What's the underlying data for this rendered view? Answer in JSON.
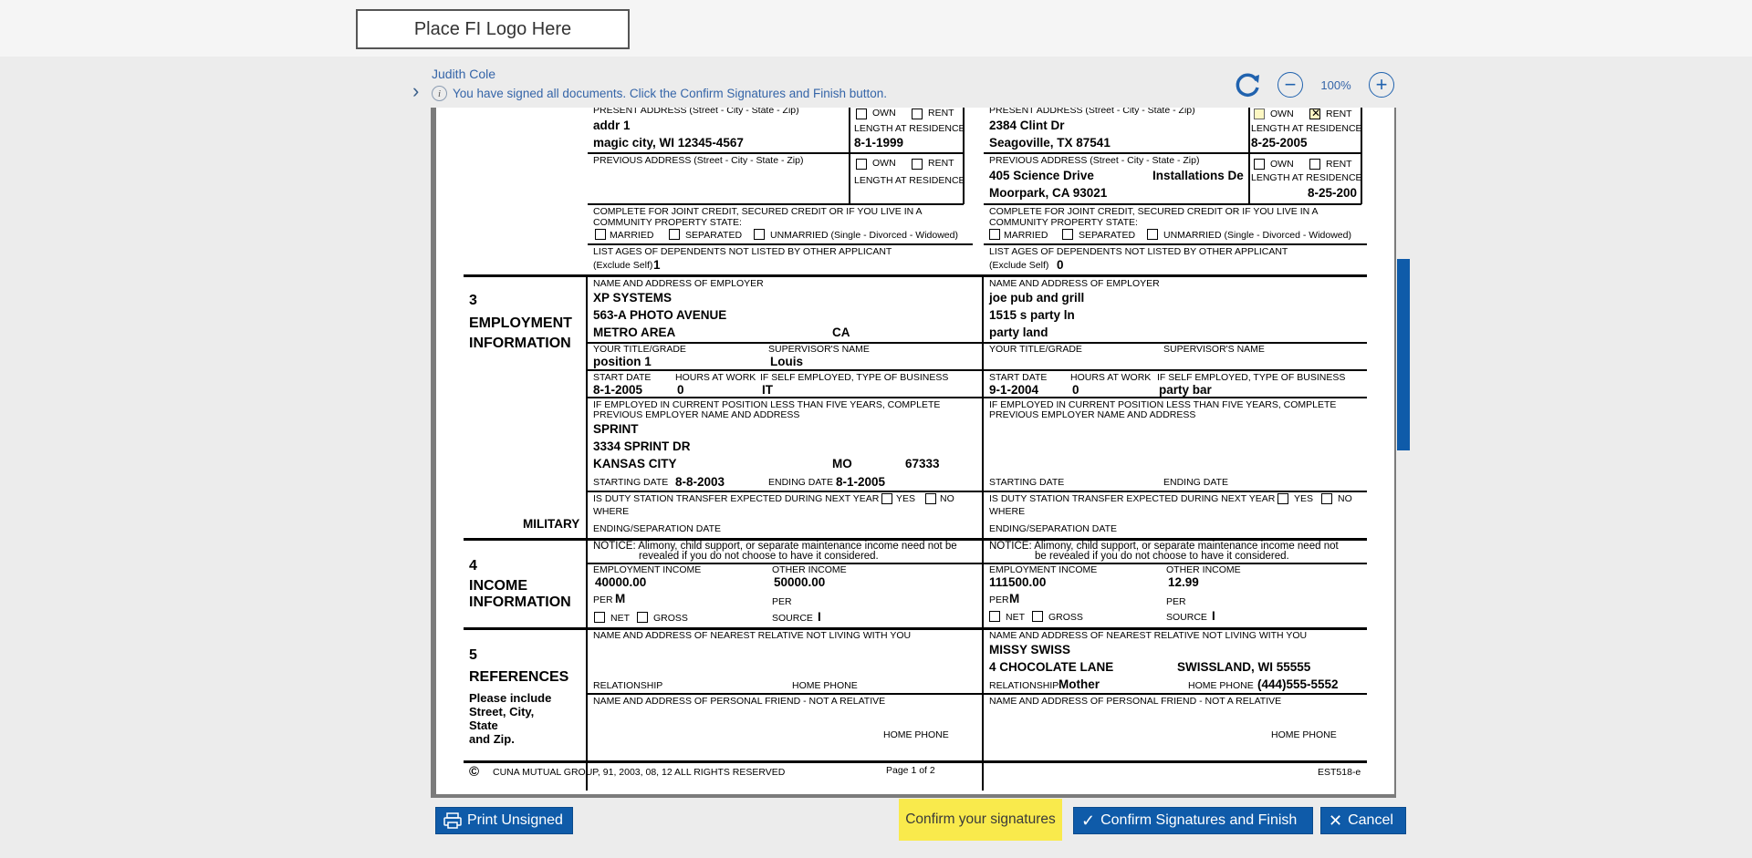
{
  "header": {
    "logo_placeholder": "Place FI Logo Here"
  },
  "signer": {
    "name": "Judith Cole",
    "info_icon": "info-icon",
    "info_text": "You have signed all documents. Click the Confirm Signatures and Finish button."
  },
  "viewer": {
    "zoom_level": "100%",
    "refresh_icon": "refresh-icon",
    "zoom_out_icon": "minus-circle-icon",
    "zoom_in_icon": "plus-circle-icon"
  },
  "form": {
    "left": {
      "present_address_label": "PRESENT ADDRESS (Street - City - State - Zip)",
      "present_address_line1": "addr 1",
      "present_address_line2": "magic city, WI 12345-4567",
      "own": "OWN",
      "rent": "RENT",
      "length_at_residence": "LENGTH AT RESIDENCE",
      "present_length": "8-1-1999",
      "previous_address_label": "PREVIOUS ADDRESS (Street - City - State - Zip)",
      "previous_length_label": "LENGTH AT RESIDENCE",
      "joint_credit_1": "COMPLETE FOR JOINT CREDIT, SECURED CREDIT OR IF YOU LIVE IN A",
      "joint_credit_2": "COMMUNITY PROPERTY STATE:",
      "married": "MARRIED",
      "separated": "SEPARATED",
      "unmarried": "UNMARRIED (Single - Divorced - Widowed)",
      "dependents_label": "LIST AGES OF DEPENDENTS NOT LISTED BY OTHER APPLICANT",
      "exclude_self": "(Exclude Self)",
      "dependents_value": "1",
      "employer_label": "NAME AND ADDRESS OF EMPLOYER",
      "employer_1": "XP SYSTEMS",
      "employer_2": "563-A PHOTO AVENUE",
      "employer_3": "METRO AREA",
      "employer_state": "CA",
      "title_label": "YOUR TITLE/GRADE",
      "supervisor_label": "SUPERVISOR'S NAME",
      "title_value": "position 1",
      "supervisor_value": "Louis",
      "start_date_label": "START DATE",
      "hours_label": "HOURS AT WORK",
      "self_employed_label": "IF SELF EMPLOYED, TYPE OF BUSINESS",
      "start_date_value": "8-1-2005",
      "hours_value": "0",
      "business_value": "IT",
      "prev_emp_label_1": "IF EMPLOYED IN CURRENT POSITION LESS THAN FIVE YEARS, COMPLETE",
      "prev_emp_label_2": "PREVIOUS EMPLOYER NAME AND ADDRESS",
      "prev_emp_1": "SPRINT",
      "prev_emp_2": "3334 SPRINT DR",
      "prev_emp_3": "KANSAS CITY",
      "prev_emp_state": "MO",
      "prev_emp_zip": "67333",
      "starting_date_label": "STARTING DATE",
      "starting_date_value": "8-8-2003",
      "ending_date_label": "ENDING DATE",
      "ending_date_value": "8-1-2005",
      "duty_label": "IS DUTY STATION TRANSFER EXPECTED DURING NEXT YEAR",
      "yes": "YES",
      "no": "NO",
      "where": "WHERE",
      "separation_label": "ENDING/SEPARATION DATE",
      "notice_1": "NOTICE: Alimony, child support, or separate maintenance income need not be",
      "notice_2": "revealed if you do not choose to have it considered.",
      "emp_income_label": "EMPLOYMENT INCOME",
      "other_income_label": "OTHER INCOME",
      "emp_income_value": "40000.00",
      "other_income_value": "50000.00",
      "per_label": "PER",
      "per_value": "M",
      "per2_label": "PER",
      "net": "NET",
      "gross": "GROSS",
      "source_label": "SOURCE",
      "source_value": "I",
      "relative_label": "NAME AND ADDRESS OF NEAREST RELATIVE NOT LIVING WITH YOU",
      "relationship_label": "RELATIONSHIP",
      "home_phone_label": "HOME PHONE",
      "friend_label": "NAME AND ADDRESS OF PERSONAL FRIEND - NOT A RELATIVE",
      "friend_phone_label": "HOME PHONE"
    },
    "right": {
      "present_address_label": "PRESENT ADDRESS (Street - City - State - Zip)",
      "present_address_line1": "2384 Clint Dr",
      "present_address_line2": "Seagoville, TX 87541",
      "own": "OWN",
      "rent": "RENT",
      "length_at_residence": "LENGTH AT RESIDENCE",
      "present_length": "8-25-2005",
      "previous_address_label": "PREVIOUS ADDRESS (Street - City - State - Zip)",
      "previous_address_line1": "405 Science Drive",
      "previous_address_extra": "Installations De",
      "previous_address_line2": "Moorpark, CA 93021",
      "previous_length_label": "LENGTH AT RESIDENCE",
      "previous_length": "8-25-200",
      "joint_credit_1": "COMPLETE FOR JOINT CREDIT, SECURED CREDIT OR IF YOU LIVE IN A",
      "joint_credit_2": "COMMUNITY PROPERTY STATE:",
      "married": "MARRIED",
      "separated": "SEPARATED",
      "unmarried": "UNMARRIED (Single - Divorced - Widowed)",
      "dependents_label": "LIST AGES OF DEPENDENTS NOT LISTED BY OTHER APPLICANT",
      "exclude_self": "(Exclude Self)",
      "dependents_value": "0",
      "employer_label": "NAME AND ADDRESS OF EMPLOYER",
      "employer_1": "joe pub and grill",
      "employer_2": "1515 s party ln",
      "employer_3": "party land",
      "title_label": "YOUR TITLE/GRADE",
      "supervisor_label": "SUPERVISOR'S NAME",
      "start_date_label": "START DATE",
      "hours_label": "HOURS AT WORK",
      "self_employed_label": "IF SELF EMPLOYED, TYPE OF BUSINESS",
      "start_date_value": "9-1-2004",
      "hours_value": "0",
      "business_value": "party bar",
      "prev_emp_label_1": "IF EMPLOYED IN CURRENT POSITION LESS THAN FIVE YEARS, COMPLETE",
      "prev_emp_label_2": "PREVIOUS EMPLOYER NAME AND ADDRESS",
      "starting_date_label": "STARTING DATE",
      "ending_date_label": "ENDING DATE",
      "duty_label": "IS DUTY STATION TRANSFER EXPECTED DURING NEXT YEAR",
      "yes": "YES",
      "no": "NO",
      "where": "WHERE",
      "separation_label": "ENDING/SEPARATION DATE",
      "notice_1": "NOTICE: Alimony, child support, or separate maintenance income need not",
      "notice_2": "be revealed if you do not choose to have it considered.",
      "emp_income_label": "EMPLOYMENT INCOME",
      "other_income_label": "OTHER INCOME",
      "emp_income_value": "111500.00",
      "other_income_value": "12.99",
      "per_label": "PER",
      "per_value": "M",
      "per2_label": "PER",
      "net": "NET",
      "gross": "GROSS",
      "source_label": "SOURCE",
      "source_value": "I",
      "relative_label": "NAME AND ADDRESS OF NEAREST RELATIVE NOT LIVING WITH YOU",
      "relative_1": "MISSY SWISS",
      "relative_2": "4 CHOCOLATE LANE",
      "relative_city": "SWISSLAND, WI 55555",
      "relationship_label": "RELATIONSHIP",
      "relationship_value": "Mother",
      "home_phone_label": "HOME PHONE",
      "home_phone_value": "(444)555-5552",
      "friend_label": "NAME AND ADDRESS OF PERSONAL FRIEND - NOT A RELATIVE",
      "friend_phone_label": "HOME PHONE"
    },
    "sections": {
      "employment_number": "3",
      "employment_title_1": "EMPLOYMENT",
      "employment_title_2": "INFORMATION",
      "military": "MILITARY",
      "income_number": "4",
      "income_title_1": "INCOME",
      "income_title_2": "INFORMATION",
      "references_number": "5",
      "references_title": "REFERENCES",
      "references_note_1": "Please include",
      "references_note_2": "Street, City,",
      "references_note_3": "State",
      "references_note_4": "and Zip."
    },
    "footer": {
      "copyright_symbol": "©",
      "copyright": "CUNA MUTUAL GROUP, 91, 2003, 08, 12 ALL RIGHTS RESERVED",
      "page": "Page 1 of 2",
      "form_id": "EST518-e"
    }
  },
  "actions": {
    "print_label": "Print Unsigned",
    "print_icon": "printer-icon",
    "hint": "Confirm your signatures",
    "confirm_label": "Confirm Signatures and Finish",
    "confirm_icon": "checkmark-icon",
    "cancel_label": "Cancel",
    "cancel_icon": "close-icon"
  },
  "colors": {
    "accent": "#0f5ba9",
    "hint_yellow": "#f9ea4c",
    "link_blue": "#3565a8"
  }
}
